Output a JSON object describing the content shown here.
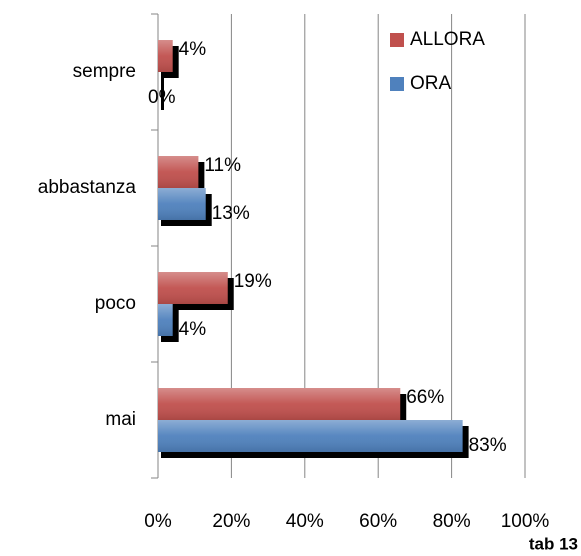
{
  "chart_data": {
    "type": "bar",
    "orientation": "horizontal",
    "categories": [
      "sempre",
      "abbastanza",
      "poco",
      "mai"
    ],
    "series": [
      {
        "name": "ALLORA",
        "color": "#c0504d",
        "values": [
          4,
          11,
          19,
          66
        ],
        "value_labels": [
          "4%",
          "11%",
          "19%",
          "66%"
        ]
      },
      {
        "name": "ORA",
        "color": "#4f81bd",
        "values": [
          0,
          13,
          4,
          83
        ],
        "value_labels": [
          "0%",
          "13%",
          "4%",
          "83%"
        ]
      }
    ],
    "xlim": [
      0,
      100
    ],
    "xticks": [
      {
        "value": 0,
        "label": "0%"
      },
      {
        "value": 20,
        "label": "20%"
      },
      {
        "value": 40,
        "label": "40%"
      },
      {
        "value": 60,
        "label": "60%"
      },
      {
        "value": 80,
        "label": "80%"
      },
      {
        "value": 100,
        "label": "100%"
      }
    ],
    "grid": true,
    "legend": "upper right",
    "shadow": true,
    "annotation": "tab 13"
  }
}
